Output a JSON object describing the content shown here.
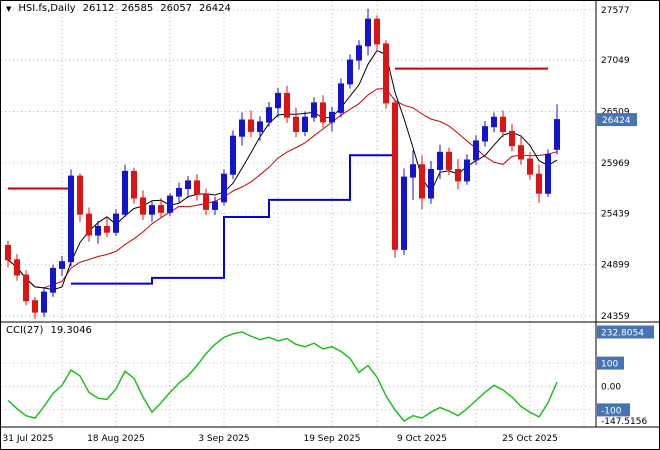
{
  "header": {
    "collapse_icon": "▼",
    "symbol_period": "HSI.fs,Daily",
    "open": "26112",
    "high": "26585",
    "low": "26057",
    "close": "26424"
  },
  "colors": {
    "background": "#ffffff",
    "border": "#000000",
    "bull": "#1414cc",
    "bear": "#dc1414",
    "ma_black": "#000000",
    "ma_red": "#cc0000",
    "step_blue": "#0000e6",
    "hline_red": "#cc0000",
    "cci_green": "#1fbf1f",
    "grid": "#bdbdbd",
    "tag_bg": "#4673b4",
    "tag_text": "#ffffff",
    "axis_text": "#000000"
  },
  "chart_data": {
    "type": "candlestick",
    "title": "HSI.fs,Daily",
    "last_ohlc": {
      "open": 26112,
      "high": 26585,
      "low": 26057,
      "close": 26424
    },
    "price_axis": {
      "ticks": [
        27577,
        27049,
        26509,
        25969,
        25439,
        24899,
        24359
      ],
      "current": 26424,
      "current_label": "26424"
    },
    "x_axis": {
      "date_labels": [
        {
          "label": "31 Jul 2025",
          "index": 0
        },
        {
          "label": "18 Aug 2025",
          "index": 12
        },
        {
          "label": "3 Sep 2025",
          "index": 24
        },
        {
          "label": "19 Sep 2025",
          "index": 36
        },
        {
          "label": "9 Oct 2025",
          "index": 46
        },
        {
          "label": "25 Oct 2025",
          "index": 58
        }
      ],
      "grid_indices": [
        6,
        12,
        18,
        24,
        30,
        36,
        41,
        46,
        52,
        58,
        64
      ]
    },
    "candles": [
      [
        25100,
        25150,
        24870,
        24950
      ],
      [
        24950,
        25010,
        24730,
        24790
      ],
      [
        24790,
        24840,
        24470,
        24520
      ],
      [
        24520,
        24560,
        24330,
        24400
      ],
      [
        24400,
        24660,
        24350,
        24610
      ],
      [
        24610,
        24900,
        24560,
        24860
      ],
      [
        24860,
        24990,
        24780,
        24930
      ],
      [
        24930,
        25900,
        24880,
        25830
      ],
      [
        25830,
        25860,
        25350,
        25430
      ],
      [
        25430,
        25500,
        25140,
        25210
      ],
      [
        25210,
        25360,
        25120,
        25300
      ],
      [
        25300,
        25410,
        25190,
        25240
      ],
      [
        25240,
        25480,
        25200,
        25430
      ],
      [
        25430,
        25950,
        25400,
        25880
      ],
      [
        25880,
        25920,
        25540,
        25600
      ],
      [
        25600,
        25680,
        25370,
        25430
      ],
      [
        25430,
        25570,
        25350,
        25520
      ],
      [
        25520,
        25600,
        25390,
        25450
      ],
      [
        25450,
        25650,
        25410,
        25620
      ],
      [
        25620,
        25760,
        25550,
        25700
      ],
      [
        25700,
        25830,
        25600,
        25780
      ],
      [
        25780,
        25850,
        25570,
        25640
      ],
      [
        25640,
        25700,
        25420,
        25480
      ],
      [
        25480,
        25610,
        25420,
        25560
      ],
      [
        25560,
        25900,
        25520,
        25850
      ],
      [
        25850,
        26310,
        25800,
        26250
      ],
      [
        26250,
        26500,
        26150,
        26420
      ],
      [
        26420,
        26520,
        26240,
        26300
      ],
      [
        26300,
        26460,
        26200,
        26400
      ],
      [
        26400,
        26610,
        26350,
        26550
      ],
      [
        26550,
        26760,
        26450,
        26700
      ],
      [
        26700,
        26780,
        26390,
        26450
      ],
      [
        26450,
        26550,
        26240,
        26300
      ],
      [
        26300,
        26510,
        26250,
        26450
      ],
      [
        26450,
        26660,
        26400,
        26600
      ],
      [
        26600,
        26680,
        26340,
        26400
      ],
      [
        26400,
        26560,
        26300,
        26500
      ],
      [
        26500,
        26860,
        26450,
        26800
      ],
      [
        26800,
        27110,
        26750,
        27050
      ],
      [
        27050,
        27260,
        26950,
        27200
      ],
      [
        27200,
        27590,
        27100,
        27480
      ],
      [
        27480,
        27520,
        27140,
        27220
      ],
      [
        27220,
        27260,
        26540,
        26600
      ],
      [
        26600,
        26640,
        24970,
        25060
      ],
      [
        25060,
        25910,
        25000,
        25820
      ],
      [
        25820,
        26100,
        25580,
        25950
      ],
      [
        25950,
        26050,
        25480,
        25600
      ],
      [
        25600,
        25990,
        25540,
        25900
      ],
      [
        25900,
        26160,
        25800,
        26080
      ],
      [
        26080,
        26130,
        25840,
        25900
      ],
      [
        25900,
        26010,
        25690,
        25780
      ],
      [
        25780,
        26060,
        25740,
        26000
      ],
      [
        26000,
        26260,
        25950,
        26200
      ],
      [
        26200,
        26410,
        26140,
        26350
      ],
      [
        26350,
        26500,
        26290,
        26450
      ],
      [
        26450,
        26520,
        26240,
        26300
      ],
      [
        26300,
        26380,
        26090,
        26150
      ],
      [
        26150,
        26260,
        25950,
        26010
      ],
      [
        26010,
        26080,
        25790,
        25850
      ],
      [
        25850,
        25950,
        25550,
        25650
      ],
      [
        25650,
        26110,
        25610,
        26060
      ],
      [
        26112,
        26585,
        26057,
        26424
      ]
    ],
    "overlays": {
      "ma_fast": {
        "type": "sma",
        "period": 5,
        "color_key": "ma_black"
      },
      "ma_slow": {
        "type": "sma",
        "period": 13,
        "color_key": "ma_red"
      },
      "step_line": {
        "segments": [
          {
            "from": 7,
            "to": 16,
            "price": 24700
          },
          {
            "from": 16,
            "to": 24,
            "price": 24760
          },
          {
            "from": 24,
            "to": 29,
            "price": 25400
          },
          {
            "from": 29,
            "to": 38,
            "price": 25580
          },
          {
            "from": 38,
            "to": 43,
            "price": 26050
          }
        ]
      },
      "hlines": [
        {
          "from": 0,
          "to": 7,
          "price": 25700
        },
        {
          "from": 43,
          "to": 60,
          "price": 26960
        }
      ]
    },
    "indicator": {
      "name": "CCI",
      "period": 27,
      "label": "CCI(27)",
      "value_label": "19.3046",
      "scale_max": 232.8054,
      "scale_min": -147.5156,
      "levels": [
        100,
        0,
        -100
      ],
      "axis_labels": [
        {
          "text": "232.8054",
          "value": 232.8054,
          "boxed": true
        },
        {
          "text": "100",
          "value": 100,
          "boxed": true
        },
        {
          "text": "0.00",
          "value": 0,
          "boxed": false
        },
        {
          "text": "-100",
          "value": -100,
          "boxed": true
        },
        {
          "text": "-147.5156",
          "value": -147.5156,
          "boxed": false
        }
      ],
      "values": [
        -60,
        -95,
        -125,
        -135,
        -85,
        -30,
        5,
        70,
        45,
        -25,
        -50,
        -55,
        -10,
        65,
        35,
        -45,
        -110,
        -70,
        -25,
        15,
        45,
        90,
        140,
        180,
        210,
        225,
        232.8054,
        215,
        200,
        210,
        195,
        205,
        180,
        170,
        185,
        160,
        170,
        150,
        120,
        60,
        90,
        40,
        -40,
        -100,
        -147.5156,
        -125,
        -135,
        -110,
        -90,
        -105,
        -125,
        -95,
        -60,
        -25,
        5,
        -15,
        -45,
        -85,
        -110,
        -130,
        -70,
        19.3046
      ]
    }
  }
}
